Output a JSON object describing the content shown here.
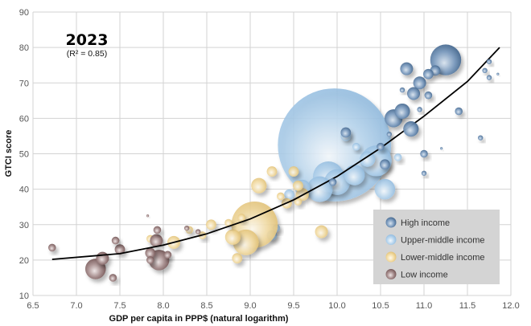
{
  "chart_data": {
    "type": "scatter",
    "title": "2023",
    "subtitle": "(R² = 0.85)",
    "xlabel": "GDP per capita in PPP$ (natural logarithm)",
    "ylabel": "GTCI score",
    "xlim": [
      6.5,
      12.0
    ],
    "ylim": [
      10,
      90
    ],
    "xticks": [
      "6.5",
      "7.0",
      "7.5",
      "8.0",
      "8.5",
      "9.0",
      "9.5",
      "10.0",
      "10.5",
      "11.0",
      "11.5",
      "12.0"
    ],
    "yticks": [
      "10",
      "20",
      "30",
      "40",
      "50",
      "60",
      "70",
      "80",
      "90"
    ],
    "grid": true,
    "legend_position": "bottom-right",
    "legend": [
      {
        "key": "high",
        "label": "High income",
        "color": "#5b7fa6"
      },
      {
        "key": "upper",
        "label": "Upper-middle income",
        "color": "#a8cbe8"
      },
      {
        "key": "lower",
        "label": "Lower-middle income",
        "color": "#f0d595"
      },
      {
        "key": "low",
        "label": "Low income",
        "color": "#8e6e6e"
      }
    ],
    "trendline": {
      "type": "quadratic",
      "x_range": [
        6.72,
        11.87
      ],
      "points": [
        [
          6.72,
          20.2
        ],
        [
          7.5,
          21.8
        ],
        [
          8.0,
          24.2
        ],
        [
          8.5,
          27.4
        ],
        [
          9.0,
          31.6
        ],
        [
          9.5,
          37.0
        ],
        [
          10.0,
          43.6
        ],
        [
          10.5,
          51.6
        ],
        [
          11.0,
          60.6
        ],
        [
          11.5,
          70.4
        ],
        [
          11.87,
          80.0
        ]
      ]
    },
    "series": [
      {
        "name": "Upper-middle income",
        "group": "upper",
        "points": [
          [
            9.97,
            52.5,
            22
          ],
          [
            10.45,
            48.0,
            6
          ],
          [
            10.55,
            40.0,
            4
          ],
          [
            10.0,
            42.0,
            5
          ],
          [
            9.9,
            43.5,
            6
          ],
          [
            10.2,
            44.0,
            4
          ],
          [
            10.35,
            48.5,
            3
          ],
          [
            9.8,
            40.0,
            5
          ],
          [
            9.6,
            40.5,
            3
          ],
          [
            9.45,
            38.5,
            2
          ],
          [
            10.1,
            55.0,
            2
          ],
          [
            10.22,
            52.0,
            1.5
          ],
          [
            9.3,
            29.0,
            1.5
          ],
          [
            9.25,
            27.0,
            2
          ],
          [
            10.7,
            49.0,
            1.5
          ]
        ]
      },
      {
        "name": "Lower-middle income",
        "group": "lower",
        "points": [
          [
            9.05,
            30.0,
            9
          ],
          [
            8.95,
            25.0,
            5
          ],
          [
            8.8,
            26.5,
            3
          ],
          [
            9.25,
            45.0,
            2
          ],
          [
            9.5,
            45.0,
            2
          ],
          [
            9.55,
            41.0,
            2
          ],
          [
            9.6,
            38.5,
            2.5
          ],
          [
            9.1,
            41.0,
            3
          ],
          [
            9.42,
            36.0,
            2
          ],
          [
            8.9,
            32.0,
            1.5
          ],
          [
            8.75,
            30.5,
            1.5
          ],
          [
            8.85,
            20.5,
            2
          ],
          [
            8.55,
            30.0,
            2
          ],
          [
            8.45,
            27.0,
            1.5
          ],
          [
            8.3,
            28.5,
            1.5
          ],
          [
            8.12,
            25.0,
            2.5
          ],
          [
            7.85,
            26.0,
            1.5
          ],
          [
            9.82,
            28.0,
            2.5
          ],
          [
            9.35,
            38.0,
            1.5
          ],
          [
            9.55,
            36.5,
            1.5
          ]
        ]
      },
      {
        "name": "High income",
        "group": "high",
        "points": [
          [
            11.25,
            76.5,
            6
          ],
          [
            11.13,
            73.5,
            2
          ],
          [
            11.05,
            72.5,
            2
          ],
          [
            10.8,
            74.0,
            2.5
          ],
          [
            10.95,
            70.0,
            2.5
          ],
          [
            10.88,
            67.0,
            2.5
          ],
          [
            11.05,
            66.5,
            1.5
          ],
          [
            10.75,
            62.0,
            3
          ],
          [
            10.65,
            60.0,
            3.5
          ],
          [
            10.85,
            57.0,
            3
          ],
          [
            11.0,
            50.0,
            1.5
          ],
          [
            10.6,
            55.5,
            1
          ],
          [
            10.5,
            52.0,
            1.5
          ],
          [
            10.55,
            47.0,
            2
          ],
          [
            11.75,
            76.0,
            1
          ],
          [
            11.7,
            73.5,
            1
          ],
          [
            11.75,
            71.5,
            1
          ],
          [
            11.85,
            72.5,
            0.5
          ],
          [
            11.4,
            62.0,
            1.5
          ],
          [
            11.65,
            54.5,
            1
          ],
          [
            11.0,
            44.5,
            1
          ],
          [
            11.2,
            51.5,
            0.5
          ],
          [
            10.1,
            56.0,
            2
          ],
          [
            9.95,
            42.0,
            1.5
          ],
          [
            10.75,
            68.0,
            1
          ],
          [
            10.95,
            62.5,
            1
          ]
        ]
      },
      {
        "name": "Low income",
        "group": "low",
        "points": [
          [
            6.72,
            23.5,
            1.5
          ],
          [
            7.22,
            17.5,
            4
          ],
          [
            7.3,
            20.5,
            2.5
          ],
          [
            7.42,
            15.0,
            1.5
          ],
          [
            7.45,
            25.5,
            1.5
          ],
          [
            7.5,
            23.0,
            2
          ],
          [
            7.82,
            32.5,
            0.5
          ],
          [
            7.85,
            22.0,
            2
          ],
          [
            7.85,
            20.0,
            1.5
          ],
          [
            7.93,
            28.5,
            1.5
          ],
          [
            7.95,
            20.0,
            4
          ],
          [
            7.92,
            25.5,
            2.5
          ],
          [
            8.05,
            21.5,
            1.5
          ],
          [
            8.27,
            29.0,
            1
          ],
          [
            8.4,
            28.0,
            1
          ]
        ]
      }
    ]
  }
}
